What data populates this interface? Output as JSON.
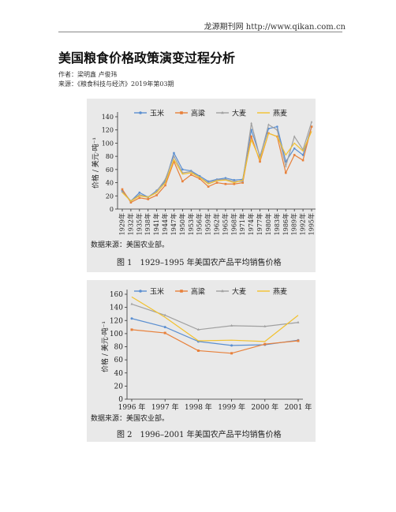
{
  "header": {
    "text": "龙源期刊网 http://www.qikan.com.cn"
  },
  "article": {
    "title": "美国粮食价格政策演变过程分析",
    "author": "作者：梁明鑫 卢俊玮",
    "source": "来源：《粮食科技与经济》2019年第03期"
  },
  "legend": [
    "玉米",
    "高粱",
    "大麦",
    "燕麦"
  ],
  "colors": {
    "corn": "#5b8fd1",
    "sorghum": "#e8803a",
    "barley": "#a0a0a0",
    "oats": "#f2c12e"
  },
  "figure1": {
    "ylabel": "价格 / 美元·吨⁻¹",
    "yticks": [
      "0",
      "20",
      "40",
      "60",
      "80",
      "100",
      "120",
      "140"
    ],
    "source_note": "数据来源：美国农业部。",
    "caption": "图 1　1929–1995 年美国农产品平均销售价格"
  },
  "figure2": {
    "ylabel": "价格 / 美元·吨⁻¹",
    "yticks": [
      "0",
      "20",
      "40",
      "60",
      "80",
      "100",
      "120",
      "140",
      "160"
    ],
    "source_note": "数据来源：美国农业部。",
    "caption": "图 2　1996–2001 年美国农产品平均销售价格"
  },
  "chart_data": [
    {
      "type": "line",
      "x": [
        "1929年",
        "1932年",
        "1935年",
        "1938年",
        "1941年",
        "1944年",
        "1947年",
        "1950年",
        "1953年",
        "1956年",
        "1959年",
        "1962年",
        "1965年",
        "1968年",
        "1971年",
        "1974年",
        "1977年",
        "1980年",
        "1983年",
        "1986年",
        "1989年",
        "1992年",
        "1995年"
      ],
      "ylabel": "价格 / 美元·吨⁻¹",
      "ylim": [
        0,
        140
      ],
      "series": [
        {
          "name": "玉米",
          "values": [
            28,
            12,
            25,
            18,
            28,
            42,
            85,
            60,
            58,
            50,
            42,
            45,
            47,
            44,
            45,
            120,
            80,
            122,
            125,
            72,
            92,
            82,
            125
          ]
        },
        {
          "name": "高粱",
          "values": [
            30,
            10,
            17,
            15,
            21,
            36,
            72,
            42,
            52,
            46,
            34,
            40,
            38,
            38,
            40,
            110,
            72,
            115,
            110,
            55,
            82,
            74,
            125
          ]
        },
        {
          "name": "大麦",
          "values": [
            26,
            12,
            22,
            18,
            27,
            45,
            80,
            55,
            57,
            48,
            40,
            44,
            45,
            42,
            42,
            130,
            78,
            128,
            120,
            65,
            110,
            90,
            132
          ]
        },
        {
          "name": "燕麦",
          "values": [
            25,
            12,
            20,
            18,
            25,
            40,
            75,
            53,
            55,
            48,
            38,
            43,
            44,
            40,
            44,
            105,
            75,
            115,
            110,
            82,
            100,
            88,
            118
          ]
        }
      ]
    },
    {
      "type": "line",
      "x": [
        "1996 年",
        "1997 年",
        "1998 年",
        "1999 年",
        "2000 年",
        "2001 年"
      ],
      "ylabel": "价格 / 美元·吨⁻¹",
      "ylim": [
        0,
        160
      ],
      "series": [
        {
          "name": "玉米",
          "values": [
            123,
            110,
            88,
            82,
            83,
            90
          ]
        },
        {
          "name": "高粱",
          "values": [
            106,
            101,
            74,
            70,
            84,
            89
          ]
        },
        {
          "name": "大麦",
          "values": [
            145,
            128,
            106,
            112,
            111,
            117
          ]
        },
        {
          "name": "燕麦",
          "values": [
            156,
            125,
            89,
            90,
            88,
            128
          ]
        }
      ]
    }
  ]
}
